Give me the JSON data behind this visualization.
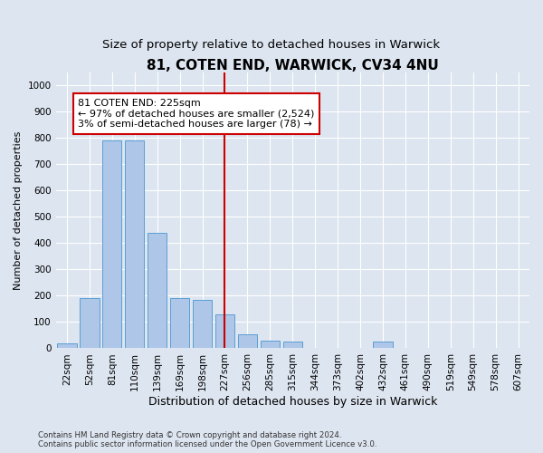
{
  "title": "81, COTEN END, WARWICK, CV34 4NU",
  "subtitle": "Size of property relative to detached houses in Warwick",
  "xlabel": "Distribution of detached houses by size in Warwick",
  "ylabel": "Number of detached properties",
  "footer": "Contains HM Land Registry data © Crown copyright and database right 2024.\nContains public sector information licensed under the Open Government Licence v3.0.",
  "categories": [
    "22sqm",
    "52sqm",
    "81sqm",
    "110sqm",
    "139sqm",
    "169sqm",
    "198sqm",
    "227sqm",
    "256sqm",
    "285sqm",
    "315sqm",
    "344sqm",
    "373sqm",
    "402sqm",
    "432sqm",
    "461sqm",
    "490sqm",
    "519sqm",
    "549sqm",
    "578sqm",
    "607sqm"
  ],
  "values": [
    20,
    190,
    790,
    790,
    440,
    190,
    185,
    130,
    55,
    30,
    25,
    0,
    0,
    0,
    25,
    0,
    0,
    0,
    0,
    0,
    0
  ],
  "bar_color": "#aec6e8",
  "bar_edge_color": "#5a9fd4",
  "vline_index": 7,
  "annotation_text": "81 COTEN END: 225sqm\n← 97% of detached houses are smaller (2,524)\n3% of semi-detached houses are larger (78) →",
  "annotation_box_color": "#ffffff",
  "annotation_box_edge_color": "#cc0000",
  "vline_color": "#cc0000",
  "ylim": [
    0,
    1050
  ],
  "yticks": [
    0,
    100,
    200,
    300,
    400,
    500,
    600,
    700,
    800,
    900,
    1000
  ],
  "bg_color": "#dde5f0",
  "plot_bg_color": "#dde5f0",
  "grid_color": "#ffffff",
  "title_fontsize": 11,
  "subtitle_fontsize": 9.5,
  "xlabel_fontsize": 9,
  "ylabel_fontsize": 8,
  "tick_fontsize": 7.5,
  "annotation_fontsize": 8
}
